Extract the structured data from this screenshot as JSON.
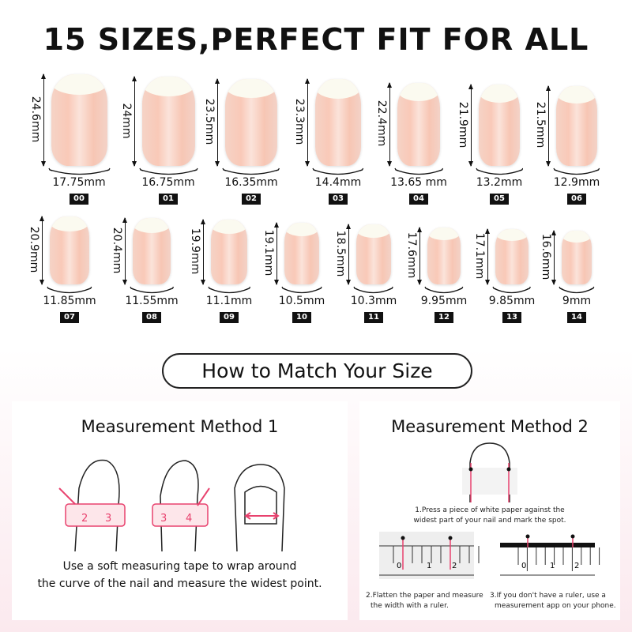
{
  "title": "15 SIZES,PERFECT FIT FOR ALL",
  "sizes": [
    {
      "tag": "00",
      "length": "24.6mm",
      "width": "17.75mm"
    },
    {
      "tag": "01",
      "length": "24mm",
      "width": "16.75mm"
    },
    {
      "tag": "02",
      "length": "23.5mm",
      "width": "16.35mm"
    },
    {
      "tag": "03",
      "length": "23.3mm",
      "width": "14.4mm"
    },
    {
      "tag": "04",
      "length": "22.4mm",
      "width": "13.65 mm"
    },
    {
      "tag": "05",
      "length": "21.9mm",
      "width": "13.2mm"
    },
    {
      "tag": "06",
      "length": "21.5mm",
      "width": "12.9mm"
    },
    {
      "tag": "07",
      "length": "20.9mm",
      "width": "11.85mm"
    },
    {
      "tag": "08",
      "length": "20.4mm",
      "width": "11.55mm"
    },
    {
      "tag": "09",
      "length": "19.9mm",
      "width": "11.1mm"
    },
    {
      "tag": "10",
      "length": "19.1mm",
      "width": "10.5mm"
    },
    {
      "tag": "11",
      "length": "18.5mm",
      "width": "10.3mm"
    },
    {
      "tag": "12",
      "length": "17.6mm",
      "width": "9.95mm"
    },
    {
      "tag": "13",
      "length": "17.1mm",
      "width": "9.85mm"
    },
    {
      "tag": "14",
      "length": "16.6mm",
      "width": "9mm"
    }
  ],
  "match_heading": "How to Match Your Size",
  "method1": {
    "title": "Measurement Method 1",
    "text_line1": "Use a soft measuring tape to wrap around",
    "text_line2": "the curve of the nail and measure the widest point.",
    "tape_numbers": [
      "2",
      "3",
      "3",
      "4"
    ]
  },
  "method2": {
    "title": "Measurement Method 2",
    "step1_line1": "1.Press a piece of white paper against the",
    "step1_line2": "widest part of your nail and mark the spot.",
    "step2_line1": "2.Flatten the paper and measure",
    "step2_line2": "the width with a ruler.",
    "step3_line1": "3.If you don't have a ruler, use a",
    "step3_line2": "measurement app on your phone.",
    "ruler_numbers": [
      "0",
      "1",
      "2"
    ]
  },
  "colors": {
    "accent": "#e8426e",
    "tag_bg": "#111111"
  }
}
